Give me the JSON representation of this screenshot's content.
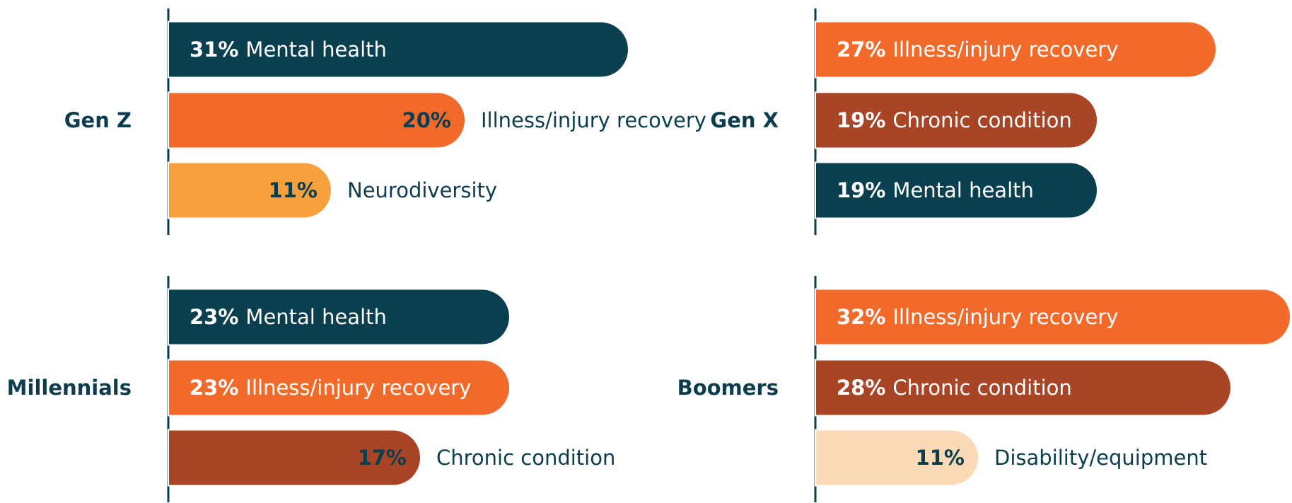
{
  "chart_data": [
    {
      "type": "bar",
      "title": "Gen Z",
      "categories": [
        "Mental health",
        "Illness/injury recovery",
        "Neurodiversity"
      ],
      "values": [
        31,
        20,
        11
      ],
      "value_labels": [
        "31%",
        "20%",
        "11%"
      ],
      "colors": [
        "#0a3f4f",
        "#f26a2a",
        "#f7a03c"
      ]
    },
    {
      "type": "bar",
      "title": "Gen X",
      "categories": [
        "Illness/injury recovery",
        "Chronic condition",
        "Mental health"
      ],
      "values": [
        27,
        19,
        19
      ],
      "value_labels": [
        "27%",
        "19%",
        "19%"
      ],
      "colors": [
        "#f26a2a",
        "#a84527",
        "#0a3f4f"
      ]
    },
    {
      "type": "bar",
      "title": "Millennials",
      "categories": [
        "Mental health",
        "Illness/injury recovery",
        "Chronic condition"
      ],
      "values": [
        23,
        23,
        17
      ],
      "value_labels": [
        "23%",
        "23%",
        "17%"
      ],
      "colors": [
        "#0a3f4f",
        "#f26a2a",
        "#a84527"
      ]
    },
    {
      "type": "bar",
      "title": "Boomers",
      "categories": [
        "Illness/injury recovery",
        "Chronic condition",
        "Disability/equipment"
      ],
      "values": [
        32,
        28,
        11
      ],
      "value_labels": [
        "32%",
        "28%",
        "11%"
      ],
      "colors": [
        "#f26a2a",
        "#a84527",
        "#fcd9b6"
      ]
    }
  ]
}
